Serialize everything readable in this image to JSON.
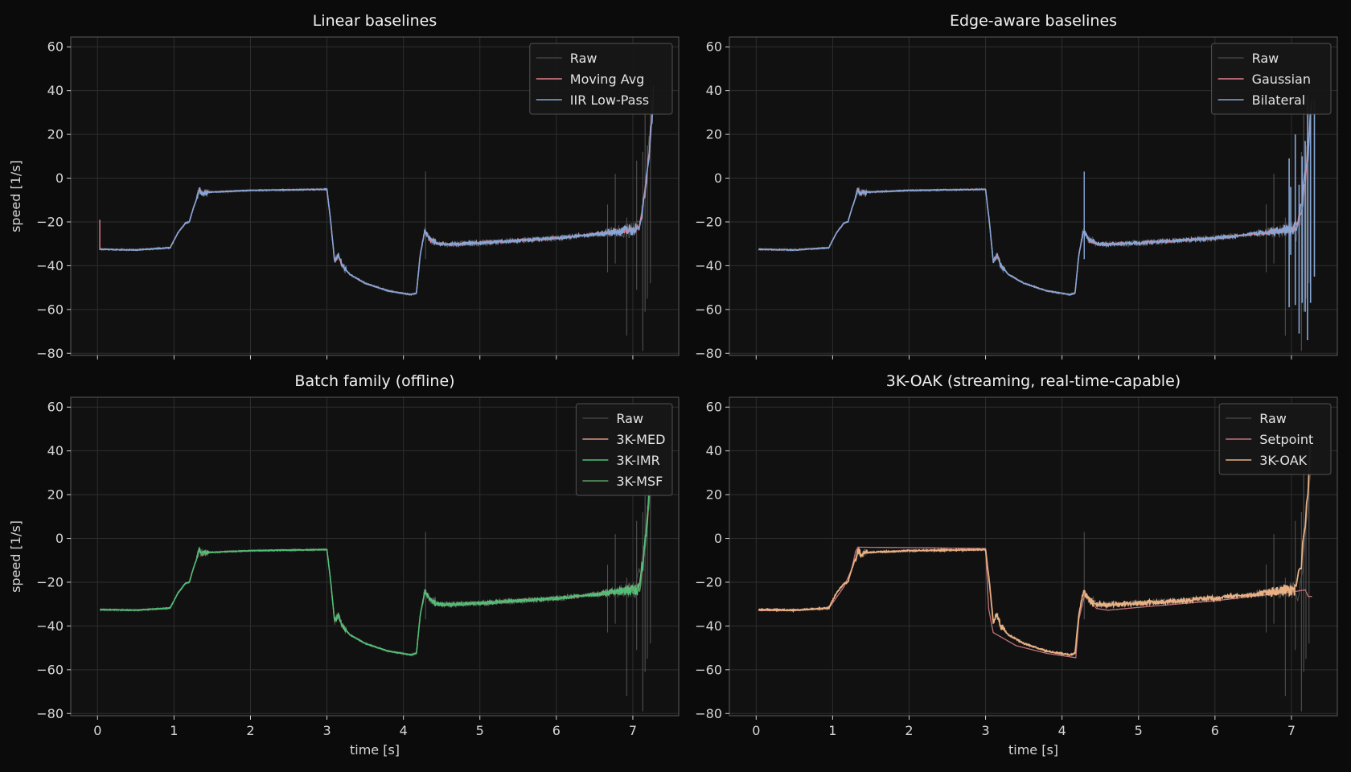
{
  "figure": {
    "background": "#0b0b0b",
    "axes_background": "#111111",
    "grid_color": "#2e2e2e",
    "spine_color": "#5a5a5a"
  },
  "chart_data": [
    {
      "type": "line",
      "title": "Linear baselines",
      "xlabel": "",
      "ylabel": "speed [1/s]",
      "xlim": [
        -0.35,
        7.6
      ],
      "ylim": [
        -81,
        64.5
      ],
      "xticks": [
        0,
        1,
        2,
        3,
        4,
        5,
        6,
        7
      ],
      "yticks": [
        60,
        40,
        20,
        0,
        -20,
        -40,
        -60,
        -80
      ],
      "show_xtick_labels": false,
      "grid": true,
      "legend_position": "top-right",
      "series": [
        {
          "name": "Raw",
          "color": "#555555",
          "role": "raw"
        },
        {
          "name": "Moving Avg",
          "color": "#e37f8f",
          "role": "ma"
        },
        {
          "name": "IIR Low-Pass",
          "color": "#86a6d6",
          "role": "iir"
        }
      ]
    },
    {
      "type": "line",
      "title": "Edge-aware baselines",
      "xlabel": "",
      "ylabel": "",
      "xlim": [
        -0.35,
        7.6
      ],
      "ylim": [
        -81,
        64.5
      ],
      "xticks": [
        0,
        1,
        2,
        3,
        4,
        5,
        6,
        7
      ],
      "yticks": [
        60,
        40,
        20,
        0,
        -20,
        -40,
        -60,
        -80
      ],
      "show_xtick_labels": false,
      "grid": true,
      "legend_position": "top-right",
      "series": [
        {
          "name": "Raw",
          "color": "#555555",
          "role": "raw"
        },
        {
          "name": "Gaussian",
          "color": "#e37f8f",
          "role": "gauss"
        },
        {
          "name": "Bilateral",
          "color": "#86a6d6",
          "role": "bilateral"
        }
      ]
    },
    {
      "type": "line",
      "title": "Batch family (offline)",
      "xlabel": "time [s]",
      "ylabel": "speed [1/s]",
      "xlim": [
        -0.35,
        7.6
      ],
      "ylim": [
        -81,
        64.5
      ],
      "xticks": [
        0,
        1,
        2,
        3,
        4,
        5,
        6,
        7
      ],
      "yticks": [
        60,
        40,
        20,
        0,
        -20,
        -40,
        -60,
        -80
      ],
      "show_xtick_labels": true,
      "grid": true,
      "legend_position": "top-right",
      "series": [
        {
          "name": "Raw",
          "color": "#555555",
          "role": "raw"
        },
        {
          "name": "3K-MED",
          "color": "#d3977e",
          "role": "med"
        },
        {
          "name": "3K-IMR",
          "color": "#4fc27a",
          "role": "imr"
        },
        {
          "name": "3K-MSF",
          "color": "#5c9a62",
          "role": "msf"
        }
      ]
    },
    {
      "type": "line",
      "title": "3K-OAK (streaming, real-time-capable)",
      "xlabel": "time [s]",
      "ylabel": "",
      "xlim": [
        -0.35,
        7.6
      ],
      "ylim": [
        -81,
        64.5
      ],
      "xticks": [
        0,
        1,
        2,
        3,
        4,
        5,
        6,
        7
      ],
      "yticks": [
        60,
        40,
        20,
        0,
        -20,
        -40,
        -60,
        -80
      ],
      "show_xtick_labels": true,
      "grid": true,
      "legend_position": "top-right",
      "series": [
        {
          "name": "Raw",
          "color": "#555555",
          "role": "raw"
        },
        {
          "name": "Setpoint",
          "color": "#c0727c",
          "role": "setpoint"
        },
        {
          "name": "3K-OAK",
          "color": "#e8b183",
          "role": "oak"
        }
      ]
    }
  ],
  "signal": {
    "main_path": [
      [
        0.03,
        -32.5
      ],
      [
        0.5,
        -32.8
      ],
      [
        0.95,
        -31.8
      ],
      [
        1.05,
        -25
      ],
      [
        1.15,
        -20.5
      ],
      [
        1.2,
        -20
      ],
      [
        1.25,
        -14
      ],
      [
        1.3,
        -9
      ],
      [
        1.33,
        -5
      ],
      [
        1.36,
        -7
      ],
      [
        1.45,
        -6.4
      ],
      [
        2.0,
        -5.6
      ],
      [
        3.0,
        -5.1
      ],
      [
        3.05,
        -20
      ],
      [
        3.1,
        -38
      ],
      [
        3.15,
        -35
      ],
      [
        3.2,
        -40
      ],
      [
        3.3,
        -44
      ],
      [
        3.5,
        -48
      ],
      [
        3.8,
        -51.5
      ],
      [
        4.1,
        -53.2
      ],
      [
        4.17,
        -52.5
      ],
      [
        4.22,
        -35
      ],
      [
        4.28,
        -24
      ],
      [
        4.35,
        -28
      ],
      [
        4.45,
        -30
      ],
      [
        4.6,
        -30.2
      ],
      [
        5.0,
        -29.6
      ],
      [
        5.5,
        -28.5
      ],
      [
        6.0,
        -27.4
      ],
      [
        6.5,
        -25.6
      ],
      [
        6.8,
        -24.3
      ],
      [
        7.05,
        -23.3
      ]
    ],
    "setpoint_path": [
      [
        0.03,
        -33
      ],
      [
        0.5,
        -33
      ],
      [
        0.95,
        -32
      ],
      [
        1.05,
        -27
      ],
      [
        1.15,
        -22
      ],
      [
        1.25,
        -14
      ],
      [
        1.3,
        -6
      ],
      [
        1.33,
        -4
      ],
      [
        2.0,
        -4.2
      ],
      [
        3.0,
        -4.6
      ],
      [
        3.04,
        -32
      ],
      [
        3.1,
        -43
      ],
      [
        3.4,
        -49
      ],
      [
        3.8,
        -52.5
      ],
      [
        4.18,
        -54.5
      ],
      [
        4.22,
        -37
      ],
      [
        4.3,
        -25
      ],
      [
        4.45,
        -32
      ],
      [
        4.6,
        -32.8
      ],
      [
        5.0,
        -31.5
      ],
      [
        5.5,
        -30
      ],
      [
        6.0,
        -28.5
      ],
      [
        6.6,
        -26
      ],
      [
        7.0,
        -24.5
      ],
      [
        7.18,
        -23.5
      ],
      [
        7.22,
        -26.5
      ]
    ],
    "raw_spikes": [
      [
        4.29,
        -37,
        3
      ],
      [
        6.67,
        -43,
        -12
      ],
      [
        6.77,
        -39,
        2
      ],
      [
        6.92,
        -72,
        -18
      ],
      [
        7.05,
        -51,
        8
      ],
      [
        7.13,
        -79,
        12
      ],
      [
        7.16,
        -61,
        31
      ],
      [
        7.19,
        -55,
        15
      ],
      [
        7.23,
        -48,
        47
      ]
    ],
    "tail_end": {
      "iir": [
        7.27,
        39
      ],
      "ma": [
        7.25,
        28
      ],
      "imr": [
        7.22,
        24
      ],
      "oak": [
        7.25,
        43
      ],
      "setpoint": [
        7.27,
        -26.5
      ]
    },
    "bilateral_spikes": [
      [
        6.97,
        -59,
        9
      ],
      [
        6.99,
        -35,
        -4
      ],
      [
        7.05,
        -58,
        20
      ],
      [
        7.1,
        -71,
        -3
      ],
      [
        7.14,
        -57,
        10
      ],
      [
        7.18,
        -61,
        17
      ],
      [
        7.21,
        -74,
        38
      ],
      [
        7.25,
        -57,
        30
      ],
      [
        7.3,
        -45,
        36
      ]
    ]
  }
}
